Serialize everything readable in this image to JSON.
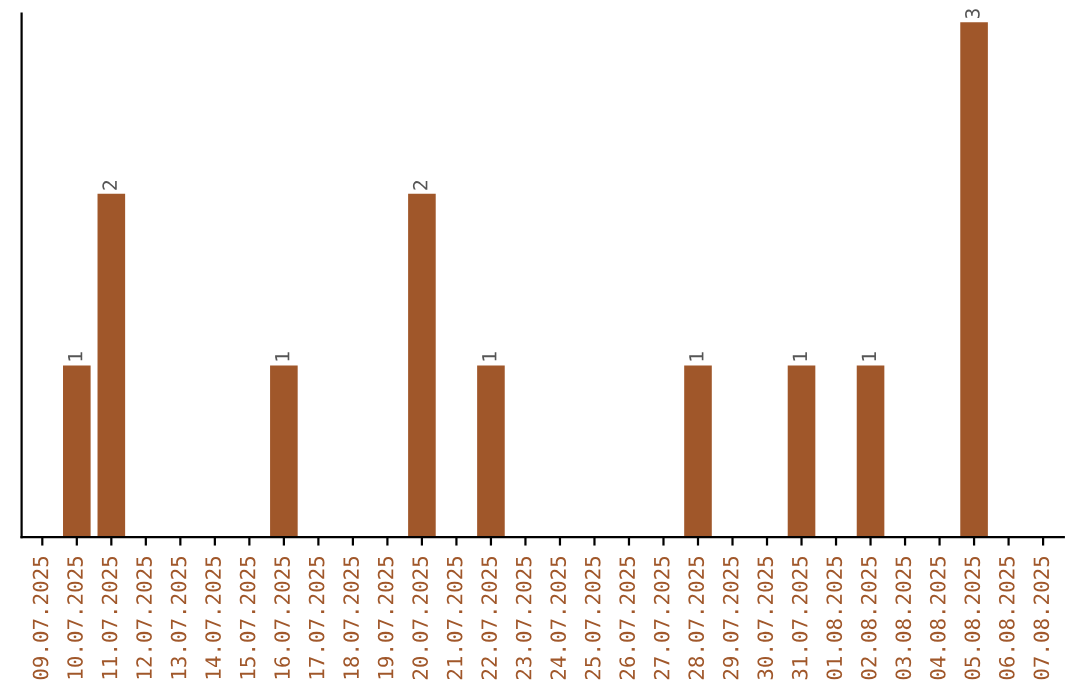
{
  "chart_data": {
    "type": "bar",
    "categories": [
      "09.07.2025",
      "10.07.2025",
      "11.07.2025",
      "12.07.2025",
      "13.07.2025",
      "14.07.2025",
      "15.07.2025",
      "16.07.2025",
      "17.07.2025",
      "18.07.2025",
      "19.07.2025",
      "20.07.2025",
      "21.07.2025",
      "22.07.2025",
      "23.07.2025",
      "24.07.2025",
      "25.07.2025",
      "26.07.2025",
      "27.07.2025",
      "28.07.2025",
      "29.07.2025",
      "30.07.2025",
      "31.07.2025",
      "01.08.2025",
      "02.08.2025",
      "03.08.2025",
      "04.08.2025",
      "05.08.2025",
      "06.08.2025",
      "07.08.2025"
    ],
    "values": [
      0,
      1,
      2,
      0,
      0,
      0,
      0,
      1,
      0,
      0,
      0,
      2,
      0,
      1,
      0,
      0,
      0,
      0,
      0,
      1,
      0,
      0,
      1,
      0,
      1,
      0,
      0,
      3,
      0,
      0
    ],
    "value_labels": [
      null,
      "1",
      "2",
      null,
      null,
      null,
      null,
      "1",
      null,
      null,
      null,
      "2",
      null,
      "1",
      null,
      null,
      null,
      null,
      null,
      "1",
      null,
      null,
      "1",
      null,
      "1",
      null,
      null,
      "3",
      null,
      null
    ],
    "color": "#a0572a",
    "ylim": [
      0,
      3.05
    ],
    "tick_labels": "x",
    "grid": false,
    "legend": false
  }
}
